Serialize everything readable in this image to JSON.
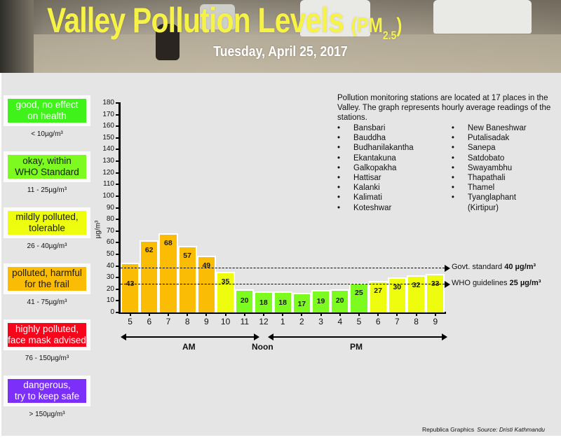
{
  "header": {
    "title": "Valley Pollution Levels",
    "title_pm": "(PM",
    "title_sub": "2.5",
    "title_close": ")",
    "date": "Tuesday, April 25, 2017"
  },
  "categories": [
    {
      "label_line1": "good, no effect",
      "label_line2": "on health",
      "range": "< 10µg/m³",
      "color": "#3ef21a",
      "text_color": "#ffffff"
    },
    {
      "label_line1": "okay, within",
      "label_line2": "WHO Standard",
      "range": "11 - 25µg/m³",
      "color": "#7dfa20",
      "text_color": "#1a1a1a"
    },
    {
      "label_line1": "mildly polluted,",
      "label_line2": "tolerable",
      "range": "26 - 40µg/m³",
      "color": "#eefc0e",
      "text_color": "#1a1a1a"
    },
    {
      "label_line1": "polluted, harmful",
      "label_line2": "for the frail",
      "range": "41 - 75µg/m³",
      "color": "#fbbc05",
      "text_color": "#1a1a1a"
    },
    {
      "label_line1": "highly polluted,",
      "label_line2": "face mask advised",
      "range": "76 - 150µg/m³",
      "color": "#f7051a",
      "text_color": "#ffffff"
    },
    {
      "label_line1": "dangerous,",
      "label_line2": "try to keep safe",
      "range": "> 150µg/m³",
      "color": "#7d2ffa",
      "text_color": "#ffffff"
    }
  ],
  "chart_data": {
    "type": "bar",
    "title": "Valley Pollution Levels (PM2.5)",
    "subtitle": "Tuesday, April 25, 2017",
    "xlabel": "",
    "ylabel": "µg/m³",
    "ylim": [
      0,
      180
    ],
    "yticks": [
      0,
      10,
      20,
      30,
      40,
      50,
      60,
      70,
      80,
      90,
      100,
      110,
      120,
      130,
      140,
      150,
      160,
      170,
      180
    ],
    "categories": [
      "5",
      "6",
      "7",
      "8",
      "9",
      "10",
      "11",
      "12",
      "1",
      "2",
      "3",
      "4",
      "5",
      "6",
      "7",
      "8",
      "9"
    ],
    "values": [
      43,
      62,
      68,
      57,
      49,
      35,
      20,
      18,
      18,
      17,
      19,
      20,
      25,
      27,
      30,
      32,
      33
    ],
    "bar_colors": [
      "#fbbc05",
      "#fbbc05",
      "#fbbc05",
      "#fbbc05",
      "#fbbc05",
      "#eefc0e",
      "#7dfa20",
      "#7dfa20",
      "#7dfa20",
      "#7dfa20",
      "#7dfa20",
      "#7dfa20",
      "#7dfa20",
      "#eefc0e",
      "#eefc0e",
      "#eefc0e",
      "#eefc0e"
    ],
    "period_labels": {
      "am": "AM",
      "noon": "Noon",
      "pm": "PM"
    },
    "reference_lines": [
      {
        "label": "Govt. standard",
        "value_label": "40 µg/m³",
        "value": 38.5
      },
      {
        "label": "WHO guidelines",
        "value_label": "25 µg/m³",
        "value": 24.5
      }
    ],
    "grid": false,
    "legend_position": "left"
  },
  "stations": {
    "intro": "Pollution monitoring stations are located at 17 places in the Valley. The graph represents hourly average readings of the stations.",
    "bullet": "•",
    "col1": [
      "Bansbari",
      "Bauddha",
      "Budhanilakantha",
      "Ekantakuna",
      "Galkopakha",
      "Hattisar",
      "Kalanki",
      "Kalimati",
      "Koteshwar"
    ],
    "col2": [
      "New Baneshwar",
      "Putalisadak",
      "Sanepa",
      "Satdobato",
      "Swayambhu",
      "Thapathali",
      "Thamel",
      "Tyanglaphant\n(Kirtipur)"
    ]
  },
  "credit": {
    "graphics": "Republica Graphics",
    "source": "Source: Dristi Kathmandu"
  }
}
